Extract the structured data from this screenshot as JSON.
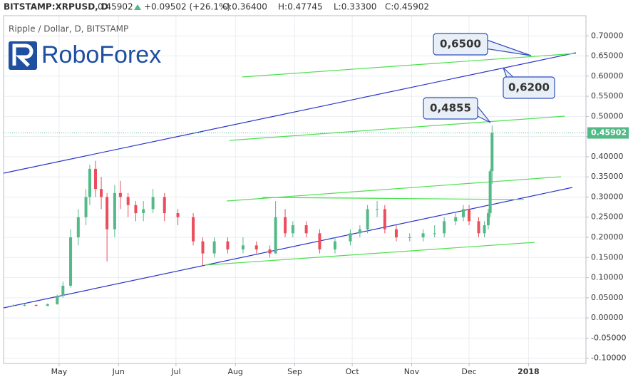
{
  "header": {
    "symbol": "BITSTAMP:XRPUSD, D",
    "last": "0.45902",
    "change": "+0.09502 (+26.1%)",
    "open": "O:0.36400",
    "high": "H:0.47745",
    "low": "L:0.33300",
    "close": "C:0.45902"
  },
  "logo": "RoboForex",
  "chart_data": {
    "type": "candlestick",
    "title": "Ripple / Dollar, D, BITSTAMP",
    "x": [
      6,
      12,
      18,
      24,
      29,
      32,
      36,
      40,
      44,
      46,
      49,
      52,
      55,
      59,
      62,
      66,
      70,
      74,
      79,
      85,
      92,
      100,
      105,
      111,
      118,
      126,
      133,
      140,
      143,
      148,
      152,
      159,
      166,
      174,
      182,
      187,
      191,
      196,
      200,
      206,
      213,
      220,
      226,
      231,
      237,
      241,
      244,
      249,
      252,
      254,
      255,
      256
    ],
    "open": [
      0.03,
      0.031,
      0.032,
      0.03,
      0.034,
      0.055,
      0.08,
      0.2,
      0.25,
      0.3,
      0.37,
      0.32,
      0.3,
      0.22,
      0.31,
      0.3,
      0.28,
      0.26,
      0.27,
      0.3,
      0.26,
      0.25,
      0.19,
      0.16,
      0.19,
      0.17,
      0.18,
      0.17,
      0.16,
      0.25,
      0.21,
      0.23,
      0.21,
      0.17,
      0.19,
      0.21,
      0.22,
      0.27,
      0.27,
      0.22,
      0.2,
      0.2,
      0.21,
      0.21,
      0.24,
      0.25,
      0.27,
      0.24,
      0.21,
      0.23,
      0.26,
      0.364
    ],
    "high": [
      0.034,
      0.035,
      0.034,
      0.036,
      0.058,
      0.09,
      0.22,
      0.27,
      0.32,
      0.38,
      0.39,
      0.35,
      0.31,
      0.33,
      0.34,
      0.31,
      0.29,
      0.29,
      0.32,
      0.31,
      0.27,
      0.26,
      0.2,
      0.2,
      0.2,
      0.2,
      0.19,
      0.18,
      0.29,
      0.27,
      0.24,
      0.24,
      0.22,
      0.2,
      0.22,
      0.23,
      0.28,
      0.29,
      0.28,
      0.23,
      0.21,
      0.22,
      0.23,
      0.25,
      0.26,
      0.28,
      0.28,
      0.25,
      0.24,
      0.27,
      0.37,
      0.47745
    ],
    "low": [
      0.028,
      0.029,
      0.029,
      0.029,
      0.033,
      0.05,
      0.075,
      0.18,
      0.23,
      0.28,
      0.3,
      0.27,
      0.14,
      0.2,
      0.27,
      0.25,
      0.24,
      0.24,
      0.26,
      0.24,
      0.23,
      0.18,
      0.13,
      0.15,
      0.16,
      0.16,
      0.16,
      0.15,
      0.16,
      0.2,
      0.2,
      0.2,
      0.16,
      0.16,
      0.18,
      0.2,
      0.21,
      0.25,
      0.21,
      0.19,
      0.19,
      0.19,
      0.2,
      0.2,
      0.23,
      0.24,
      0.23,
      0.2,
      0.2,
      0.22,
      0.25,
      0.333
    ],
    "close": [
      0.031,
      0.032,
      0.03,
      0.034,
      0.055,
      0.08,
      0.2,
      0.25,
      0.3,
      0.37,
      0.32,
      0.3,
      0.22,
      0.31,
      0.3,
      0.28,
      0.26,
      0.27,
      0.3,
      0.26,
      0.25,
      0.19,
      0.16,
      0.19,
      0.17,
      0.18,
      0.17,
      0.16,
      0.25,
      0.21,
      0.23,
      0.21,
      0.17,
      0.19,
      0.21,
      0.22,
      0.27,
      0.27,
      0.22,
      0.2,
      0.2,
      0.21,
      0.21,
      0.24,
      0.25,
      0.27,
      0.24,
      0.21,
      0.23,
      0.26,
      0.364,
      0.45902
    ],
    "last_label": "0.45902",
    "up_color": "#53b987",
    "down_color": "#eb4d5c",
    "xlim": [
      1,
      305
    ],
    "xticks": [
      {
        "value": 30,
        "label": "May"
      },
      {
        "value": 61,
        "label": "Jun"
      },
      {
        "value": 91,
        "label": "Jul"
      },
      {
        "value": 122,
        "label": "Aug"
      },
      {
        "value": 153,
        "label": "Sep"
      },
      {
        "value": 183,
        "label": "Oct"
      },
      {
        "value": 214,
        "label": "Nov"
      },
      {
        "value": 244,
        "label": "Dec"
      },
      {
        "value": 275,
        "label": "2018"
      }
    ],
    "ylim": [
      -0.113,
      0.75
    ],
    "yticks": [
      {
        "value": 0.7,
        "label": "0.70000"
      },
      {
        "value": 0.65,
        "label": "0.65000"
      },
      {
        "value": 0.6,
        "label": "0.60000"
      },
      {
        "value": 0.55,
        "label": "0.55000"
      },
      {
        "value": 0.5,
        "label": "0.50000"
      },
      {
        "value": 0.45,
        "label": "0.45000"
      },
      {
        "value": 0.4,
        "label": "0.40000"
      },
      {
        "value": 0.35,
        "label": "0.35000"
      },
      {
        "value": 0.3,
        "label": "0.30000"
      },
      {
        "value": 0.25,
        "label": "0.25000"
      },
      {
        "value": 0.2,
        "label": "0.20000"
      },
      {
        "value": 0.15,
        "label": "0.15000"
      },
      {
        "value": 0.1,
        "label": "0.10000"
      },
      {
        "value": 0.05,
        "label": "0.05000"
      },
      {
        "value": 0,
        "label": "0.00000"
      },
      {
        "value": -0.05,
        "label": "-0.05000"
      },
      {
        "value": -0.1,
        "label": "-0.10000"
      }
    ],
    "grid": true,
    "annotations": [
      "0,6500",
      "0,6200",
      "0,4855"
    ]
  }
}
